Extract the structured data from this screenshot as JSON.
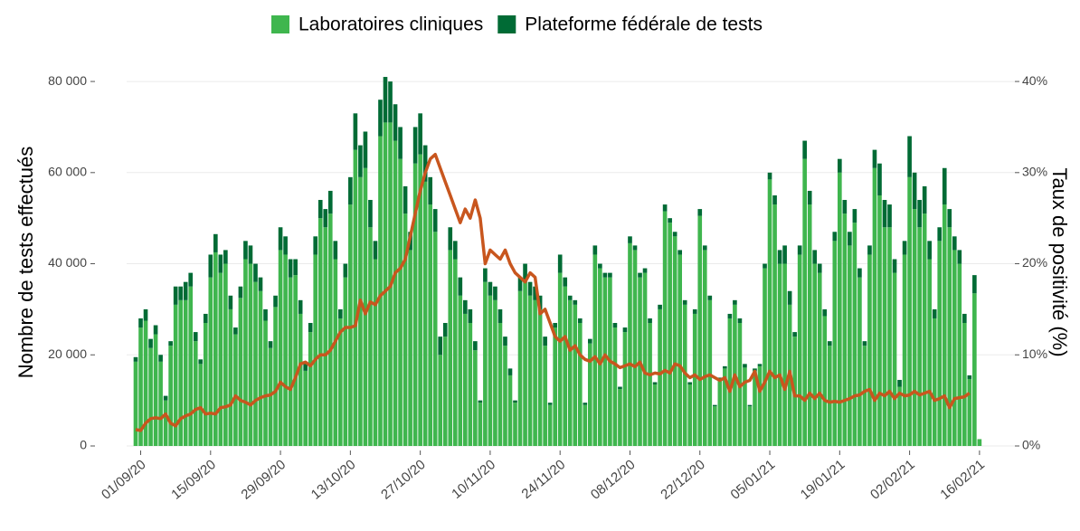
{
  "chart_data": {
    "type": "bar",
    "stacked": true,
    "categories": [
      null,
      "01/09/20",
      null,
      null,
      null,
      null,
      null,
      null,
      null,
      null,
      null,
      null,
      null,
      null,
      null,
      "15/09/20",
      null,
      null,
      null,
      null,
      null,
      null,
      null,
      null,
      null,
      null,
      null,
      null,
      null,
      "29/09/20",
      null,
      null,
      null,
      null,
      null,
      null,
      null,
      null,
      null,
      null,
      null,
      null,
      null,
      "13/10/20",
      null,
      null,
      null,
      null,
      null,
      null,
      null,
      null,
      null,
      null,
      null,
      null,
      null,
      "27/10/20",
      null,
      null,
      null,
      null,
      null,
      null,
      null,
      null,
      null,
      null,
      null,
      null,
      null,
      "10/11/20",
      null,
      null,
      null,
      null,
      null,
      null,
      null,
      null,
      null,
      null,
      null,
      null,
      null,
      "24/11/20",
      null,
      null,
      null,
      null,
      null,
      null,
      null,
      null,
      null,
      null,
      null,
      null,
      null,
      "08/12/20",
      null,
      null,
      null,
      null,
      null,
      null,
      null,
      null,
      null,
      null,
      null,
      null,
      null,
      "22/12/20",
      null,
      null,
      null,
      null,
      null,
      null,
      null,
      null,
      null,
      null,
      null,
      null,
      null,
      "05/01/21",
      null,
      null,
      null,
      null,
      null,
      null,
      null,
      null,
      null,
      null,
      null,
      null,
      null,
      "19/01/21",
      null,
      null,
      null,
      null,
      null,
      null,
      null,
      null,
      null,
      null,
      null,
      null,
      null,
      "02/02/21",
      null,
      null,
      null,
      null,
      null,
      null,
      null,
      null,
      null,
      null,
      null,
      null,
      null,
      "16/02/21"
    ],
    "series": [
      {
        "name": "Laboratoires cliniques",
        "color": "#3fb64e",
        "values": [
          18500,
          26000,
          27500,
          21500,
          24500,
          18500,
          10000,
          22000,
          31000,
          32000,
          32000,
          35000,
          23000,
          18000,
          27000,
          37000,
          42500,
          38000,
          40000,
          30000,
          24500,
          32500,
          41000,
          40000,
          36000,
          34000,
          27500,
          21500,
          30500,
          43000,
          42000,
          37000,
          37500,
          29000,
          16500,
          25000,
          42000,
          50000,
          48000,
          51000,
          41000,
          28000,
          37000,
          53000,
          65000,
          59000,
          61000,
          48000,
          41000,
          68000,
          71000,
          71000,
          67000,
          63000,
          51000,
          43000,
          62000,
          64000,
          58000,
          53000,
          47000,
          20000,
          24000,
          43000,
          41000,
          33000,
          29000,
          27000,
          21000,
          9500,
          36000,
          33000,
          32000,
          27000,
          22000,
          15500,
          9500,
          34000,
          36000,
          33000,
          32000,
          30000,
          22000,
          9000,
          26000,
          38000,
          35000,
          32000,
          31000,
          27000,
          9000,
          22500,
          42000,
          39000,
          37000,
          37000,
          26000,
          12500,
          25000,
          44500,
          43000,
          37000,
          38000,
          27000,
          13500,
          30000,
          51500,
          49000,
          46000,
          42000,
          31000,
          13500,
          29000,
          50500,
          43000,
          32000,
          8700,
          14500,
          17000,
          28000,
          31000,
          27000,
          17200,
          8700,
          16500,
          17500,
          39000,
          58500,
          53000,
          40000,
          40000,
          31000,
          24000,
          42000,
          63000,
          53000,
          40000,
          38000,
          28500,
          22000,
          45000,
          60000,
          51000,
          44000,
          49000,
          37000,
          22000,
          42000,
          61000,
          55000,
          48000,
          48000,
          38000,
          13000,
          42000,
          59000,
          52000,
          48000,
          51000,
          41000,
          28000,
          45000,
          53000,
          48000,
          43000,
          40000,
          27000,
          14700,
          33500,
          1500
        ]
      },
      {
        "name": "Plateforme fédérale de tests",
        "color": "#006b35",
        "values": [
          1000,
          2000,
          2500,
          2000,
          2000,
          1500,
          1000,
          1000,
          4000,
          3000,
          4000,
          3000,
          2000,
          1000,
          2000,
          5000,
          4000,
          4000,
          3000,
          3000,
          1500,
          2500,
          4000,
          4000,
          4000,
          3000,
          2500,
          1500,
          2500,
          5000,
          4000,
          4000,
          3500,
          3000,
          1500,
          2000,
          4000,
          4000,
          4000,
          5000,
          4000,
          2000,
          3000,
          6000,
          8000,
          7000,
          8000,
          6000,
          4000,
          8000,
          10000,
          9000,
          8000,
          7000,
          6000,
          4000,
          8000,
          9000,
          8000,
          6000,
          5000,
          4000,
          3000,
          5000,
          4000,
          4000,
          3000,
          3000,
          2000,
          500,
          3000,
          3000,
          3000,
          3000,
          2000,
          1500,
          500,
          3000,
          4000,
          3000,
          3000,
          3000,
          2000,
          500,
          1000,
          4000,
          2000,
          1000,
          1000,
          1000,
          500,
          1000,
          2000,
          1000,
          1000,
          1000,
          1000,
          500,
          1000,
          1500,
          1000,
          1000,
          1000,
          1000,
          500,
          1000,
          1500,
          1000,
          1000,
          1000,
          1000,
          500,
          1000,
          1500,
          1000,
          1000,
          300,
          500,
          500,
          1000,
          1000,
          1000,
          800,
          300,
          500,
          500,
          1000,
          1500,
          2000,
          3000,
          4000,
          3000,
          1000,
          2000,
          4000,
          3000,
          3000,
          2000,
          1500,
          1000,
          2000,
          3000,
          3000,
          3000,
          3000,
          2000,
          1000,
          2000,
          4000,
          7000,
          6000,
          5000,
          3000,
          1500,
          3000,
          9000,
          8000,
          6000,
          6000,
          4000,
          2000,
          3000,
          8000,
          4000,
          3000,
          3000,
          2000,
          800,
          4000,
          0
        ]
      },
      {
        "type": "line",
        "axis": "y2",
        "color": "#c8561e",
        "values": [
          1.8,
          1.7,
          2.5,
          3,
          3.1,
          3,
          3.5,
          2.5,
          2.2,
          3,
          3.3,
          3.5,
          4,
          4.2,
          3.5,
          3.6,
          3.5,
          4.2,
          4.3,
          4.5,
          5.5,
          5,
          4.8,
          4.5,
          5,
          5.3,
          5.5,
          5.6,
          6,
          7,
          6.5,
          6.2,
          7.5,
          9,
          9.2,
          8.8,
          9.5,
          10,
          10,
          10.5,
          11.5,
          12.5,
          13,
          13,
          13.2,
          16,
          14.5,
          15.8,
          15.5,
          16.5,
          17,
          17.5,
          19,
          19.5,
          20.5,
          23,
          25.5,
          28,
          30,
          31.5,
          32,
          30.5,
          29,
          27.5,
          26,
          24.5,
          26,
          25,
          27,
          25,
          20,
          21.5,
          21,
          20.5,
          21.5,
          20,
          19,
          18.5,
          18,
          19,
          18.5,
          14.5,
          15,
          13.5,
          12,
          11.5,
          12,
          10.5,
          11,
          10,
          9.5,
          9.3,
          9.8,
          9,
          10,
          9.3,
          9,
          8.6,
          8.8,
          9,
          8.7,
          9.2,
          8,
          7.8,
          8,
          7.9,
          8.3,
          8,
          9,
          8.8,
          8,
          7.5,
          7.8,
          7.3,
          7.6,
          7.8,
          7.5,
          7.2,
          7.5,
          6,
          7.8,
          6.5,
          7,
          7.2,
          8.2,
          6,
          7,
          8.2,
          7.5,
          7.8,
          6.2,
          8.2,
          5.5,
          5.5,
          5,
          5.8,
          5.2,
          5.8,
          5,
          4.8,
          4.9,
          4.8,
          5,
          5.2,
          5.5,
          5.6,
          6,
          6.2,
          5,
          5.8,
          5.5,
          6,
          5.2,
          5.8,
          5.5,
          5.6,
          6,
          5.6,
          5.8,
          6,
          5,
          5.2,
          5.5,
          4.2,
          5.2,
          5.3,
          5.4,
          5.8,
          null,
          null
        ]
      }
    ],
    "ylabel": "Nombre de tests effectués",
    "y2label": "Taux de positivité (%)",
    "ylim": [
      0,
      82000
    ],
    "yticks": [
      0,
      {
        "value": 20000,
        "label": "20 000"
      },
      {
        "value": 40000,
        "label": "40 000"
      },
      {
        "value": 60000,
        "label": "60 000"
      },
      {
        "value": 80000,
        "label": "80 000"
      }
    ],
    "y2lim": [
      0,
      41
    ],
    "y2ticks": [
      {
        "value": 0,
        "label": "0%"
      },
      {
        "value": 10,
        "label": "10%"
      },
      {
        "value": 20,
        "label": "20%"
      },
      {
        "value": 30,
        "label": "30%"
      },
      {
        "value": 40,
        "label": "40%"
      }
    ],
    "grid": true,
    "legend": "top"
  }
}
